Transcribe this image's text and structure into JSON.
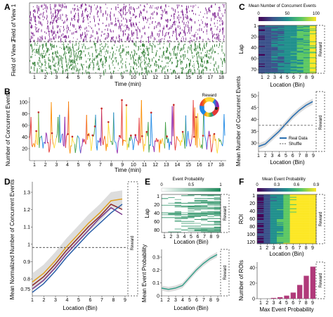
{
  "panel_a": {
    "label": "A",
    "fov1_label": "Field of View 1",
    "fov2_label": "Field of View 2",
    "xlabel": "Time (min)",
    "xticks": [
      "1",
      "2",
      "3",
      "4",
      "5",
      "6",
      "7",
      "8",
      "9",
      "10",
      "11",
      "12",
      "13",
      "14",
      "15",
      "16",
      "17",
      "18"
    ],
    "fov1_color": "#7b1e8e",
    "fov2_color": "#2e7d32"
  },
  "panel_b": {
    "label": "B",
    "ylabel": "Number of Concurrent Events",
    "xlabel": "Time (min)",
    "yticks": [
      "20",
      "40",
      "60",
      "80",
      "100"
    ],
    "xticks": [
      "1",
      "2",
      "3",
      "4",
      "5",
      "6",
      "7",
      "8",
      "9",
      "10",
      "11",
      "12",
      "13",
      "14",
      "15",
      "16",
      "17",
      "18"
    ],
    "wheel_label": "Reward"
  },
  "panel_c": {
    "label": "C",
    "colorbar_title": "Mean Number of Concurrent Events",
    "colorbar_ticks": [
      "0",
      "50",
      "100"
    ],
    "heat_ylabel": "Lap",
    "heat_yticks": [
      "1",
      "20",
      "40",
      "60",
      "70"
    ],
    "heat_xlabel": "Location (Bin)",
    "bins": [
      "1",
      "2",
      "3",
      "4",
      "5",
      "6",
      "7",
      "8",
      "9"
    ],
    "reward_label": "Reward",
    "line_ylabel": "Mean Number of Concurrent Events",
    "line_yticks": [
      "30",
      "35",
      "40",
      "45",
      "50"
    ],
    "line_xlabel": "Location (Bin)",
    "legend_real": "Real Data",
    "legend_shuffle": "Shuffle"
  },
  "panel_d": {
    "label": "D",
    "ylabel": "Mean Normalized Number of Concurrent Events",
    "yticks": [
      "0.8",
      "0.9",
      "1",
      "1.1",
      "1.2",
      "1.3"
    ],
    "extra_ytick": "0.75",
    "xlabel": "Location (Bin)",
    "xticks": [
      "1",
      "2",
      "3",
      "4",
      "5",
      "6",
      "7",
      "8",
      "9"
    ],
    "reward_label": "Reward"
  },
  "panel_e": {
    "label": "E",
    "colorbar_title": "Event Probability",
    "colorbar_ticks": [
      "0",
      "0.5",
      "1"
    ],
    "heat_ylabel": "Lap",
    "heat_yticks": [
      "1",
      "20",
      "40",
      "60",
      "80"
    ],
    "heat_xlabel": "Location (Bin)",
    "bins": [
      "1",
      "2",
      "3",
      "4",
      "5",
      "6",
      "7",
      "8",
      "9"
    ],
    "reward_label": "Reward",
    "line_ylabel": "Mean Event Probability",
    "line_yticks": [
      "0",
      "0.1",
      "0.2",
      "0.3"
    ],
    "line_xlabel": "Location (Bin)"
  },
  "panel_f": {
    "label": "F",
    "colorbar_title": "Mean Event Probability",
    "colorbar_ticks": [
      "0",
      "0.3",
      "0.6",
      "0.9"
    ],
    "heat_ylabel": "ROI",
    "heat_yticks": [
      "1",
      "20",
      "40",
      "60",
      "80",
      "100",
      "120"
    ],
    "heat_xlabel": "Location (Bin)",
    "bins": [
      "1",
      "2",
      "3",
      "4",
      "5",
      "6",
      "7",
      "8",
      "9"
    ],
    "reward_label": "Reward",
    "hist_ylabel": "Number of ROIs",
    "hist_yticks": [
      "0",
      "20",
      "40"
    ],
    "hist_xlabel": "Max Event Probability",
    "hist_xticks": [
      "1",
      "2",
      "3",
      "4",
      "5",
      "6",
      "7",
      "8",
      "9"
    ]
  },
  "chart_data": [
    {
      "type": "line",
      "panel": "C-bottom",
      "series": [
        {
          "name": "Real Data",
          "x": [
            1,
            2,
            3,
            4,
            5,
            6,
            7,
            8,
            9
          ],
          "values": [
            30,
            31,
            33.5,
            36,
            39,
            42,
            44.5,
            46.5,
            48
          ]
        },
        {
          "name": "Shuffle",
          "x": [
            1,
            9
          ],
          "values": [
            38.5,
            38.5
          ]
        }
      ],
      "xlabel": "Location (Bin)",
      "ylabel": "Mean Number of Concurrent Events",
      "xlim": [
        1,
        9.5
      ],
      "ylim": [
        28,
        52
      ]
    },
    {
      "type": "line",
      "panel": "D",
      "series": [
        {
          "x": [
            1,
            2,
            3,
            4,
            5,
            6,
            7,
            8,
            9
          ],
          "values": [
            0.8,
            0.85,
            0.92,
            1.0,
            1.07,
            1.14,
            1.2,
            1.27,
            1.28
          ]
        },
        {
          "x": [
            1,
            2,
            3,
            4,
            5,
            6,
            7,
            8,
            9
          ],
          "values": [
            0.78,
            0.83,
            0.9,
            0.98,
            1.05,
            1.12,
            1.18,
            1.25,
            1.22
          ]
        },
        {
          "x": [
            1,
            2,
            3,
            4,
            5,
            6,
            7,
            8,
            9
          ],
          "values": [
            0.76,
            0.81,
            0.88,
            0.96,
            1.03,
            1.1,
            1.17,
            1.23,
            1.19
          ]
        },
        {
          "x": [
            1,
            2,
            3,
            4,
            5,
            6,
            7,
            8,
            9
          ],
          "values": [
            0.74,
            0.79,
            0.86,
            0.94,
            1.01,
            1.08,
            1.14,
            1.2,
            1.25
          ]
        }
      ],
      "series_colors": [
        "#e0a020",
        "#8b2a2a",
        "#7a3a8c",
        "#2a5ea8"
      ],
      "xlabel": "Location (Bin)",
      "ylabel": "Mean Normalized Number of Concurrent Events",
      "xlim": [
        1,
        9.5
      ],
      "ylim": [
        0.72,
        1.38
      ],
      "hline": 1
    },
    {
      "type": "line",
      "panel": "E-bottom",
      "series": [
        {
          "x": [
            1,
            2,
            3,
            4,
            5,
            6,
            7,
            8,
            9
          ],
          "values": [
            0.06,
            0.05,
            0.06,
            0.08,
            0.14,
            0.2,
            0.25,
            0.29,
            0.32
          ]
        }
      ],
      "xlabel": "Location (Bin)",
      "ylabel": "Mean Event Probability",
      "xlim": [
        1,
        9.5
      ],
      "ylim": [
        0,
        0.36
      ]
    },
    {
      "type": "bar",
      "panel": "F-bottom",
      "categories": [
        "1",
        "2",
        "3",
        "4",
        "5",
        "6",
        "7",
        "8",
        "9"
      ],
      "values": [
        0,
        0,
        1,
        2,
        4,
        8,
        18,
        30,
        42
      ],
      "xlabel": "Max Event Probability",
      "ylabel": "Number of ROIs",
      "ylim": [
        0,
        48
      ]
    },
    {
      "type": "line",
      "panel": "B",
      "xlabel": "Time (min)",
      "ylabel": "Number of Concurrent Events",
      "xlim": [
        0,
        18.5
      ],
      "ylim": [
        0,
        110
      ]
    }
  ]
}
